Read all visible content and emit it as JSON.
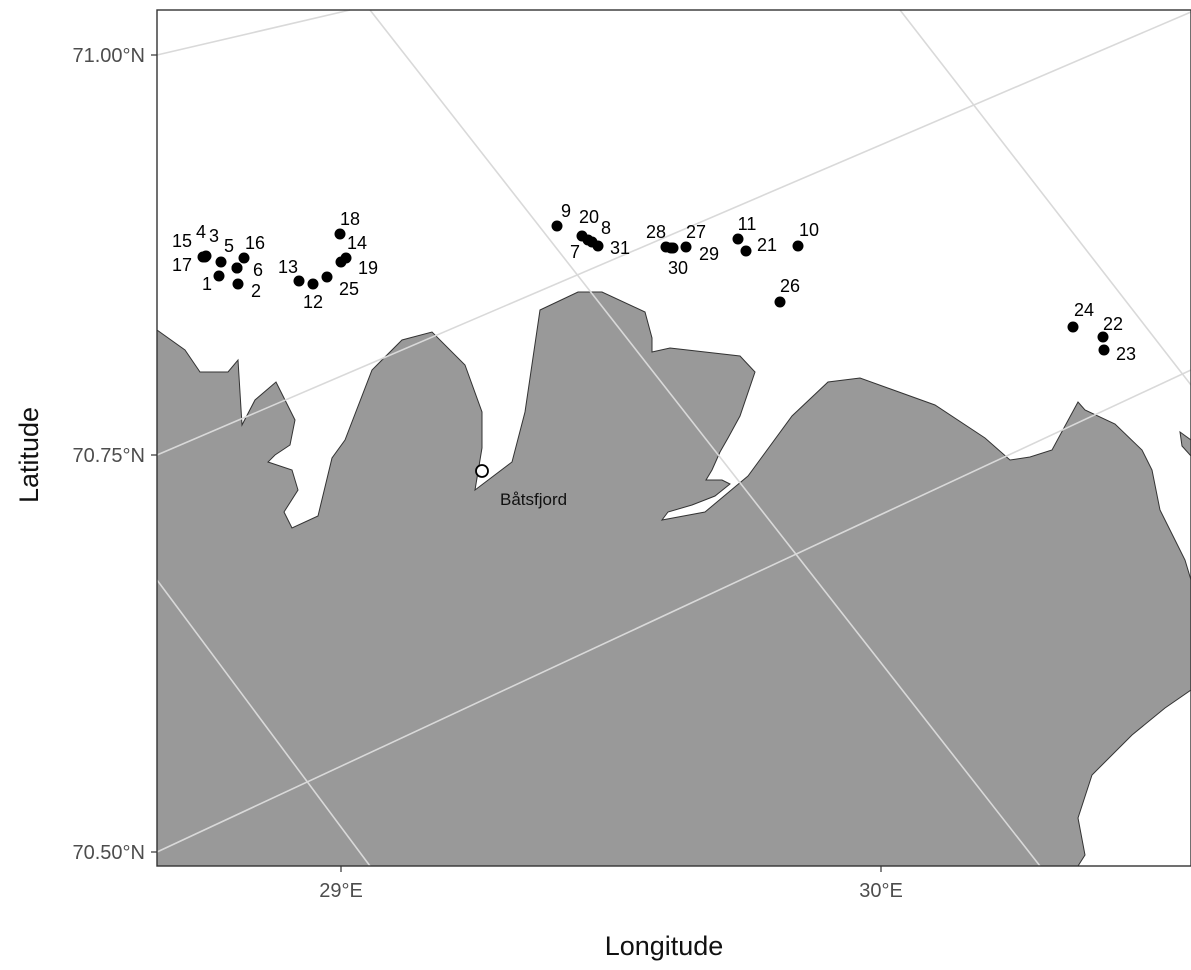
{
  "map": {
    "axes": {
      "x_title": "Longitude",
      "y_title": "Latitude",
      "x_ticks": [
        "29°E",
        "30°E"
      ],
      "y_ticks": [
        "71.00°N",
        "70.75°N",
        "70.50°N"
      ]
    },
    "town": {
      "name": "Båtsfjord"
    },
    "sites": [
      {
        "label": "1"
      },
      {
        "label": "2"
      },
      {
        "label": "3"
      },
      {
        "label": "4"
      },
      {
        "label": "5"
      },
      {
        "label": "6"
      },
      {
        "label": "7"
      },
      {
        "label": "8"
      },
      {
        "label": "9"
      },
      {
        "label": "10"
      },
      {
        "label": "11"
      },
      {
        "label": "12"
      },
      {
        "label": "13"
      },
      {
        "label": "14"
      },
      {
        "label": "15"
      },
      {
        "label": "16"
      },
      {
        "label": "17"
      },
      {
        "label": "18"
      },
      {
        "label": "19"
      },
      {
        "label": "20"
      },
      {
        "label": "21"
      },
      {
        "label": "22"
      },
      {
        "label": "23"
      },
      {
        "label": "24"
      },
      {
        "label": "25"
      },
      {
        "label": "26"
      },
      {
        "label": "27"
      },
      {
        "label": "28"
      },
      {
        "label": "29"
      },
      {
        "label": "30"
      },
      {
        "label": "31"
      }
    ],
    "colors": {
      "land": "#999999",
      "sea": "#ffffff",
      "graticule": "#d9d9d9",
      "site": "#000000"
    }
  }
}
